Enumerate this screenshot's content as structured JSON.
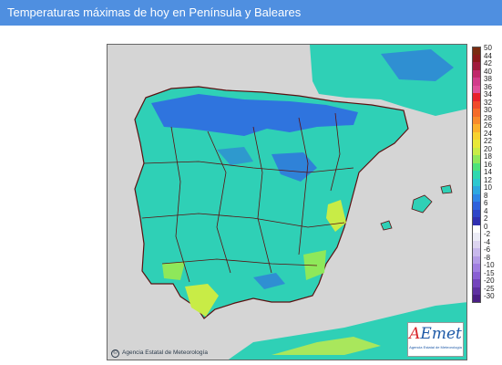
{
  "header": {
    "title": "Temperaturas máximas de hoy en Península y Baleares"
  },
  "map": {
    "copyright": "Agencia Estatal de Meteorología",
    "logo_text": "AEmet",
    "logo_sub": "Agencia Estatal de Meteorología",
    "colors": {
      "sea": "#d5d5d5",
      "land_base": "#2fd0b6",
      "cool": "#2f74de",
      "warm": "#a8e85a",
      "border": "#5a1010"
    }
  },
  "legend": {
    "labels": [
      "50",
      "44",
      "42",
      "40",
      "38",
      "36",
      "34",
      "32",
      "30",
      "28",
      "26",
      "24",
      "22",
      "20",
      "18",
      "16",
      "14",
      "12",
      "10",
      "8",
      "6",
      "4",
      "2",
      "0",
      "-2",
      "-4",
      "-6",
      "-8",
      "-10",
      "-15",
      "-20",
      "-25",
      "-30"
    ],
    "colors": [
      "#7a2b10",
      "#8b1a1a",
      "#a01c3c",
      "#c0286a",
      "#d23c8a",
      "#e0509a",
      "#e8202a",
      "#f04a2a",
      "#f56b28",
      "#f88a2a",
      "#fbb02c",
      "#f7d230",
      "#e8e838",
      "#c8ec46",
      "#8ee85a",
      "#4ee27a",
      "#2fd8b0",
      "#2ec8d0",
      "#2ea8e0",
      "#2e86e6",
      "#2f62dc",
      "#2f46c8",
      "#3030b0",
      "#ffffff",
      "#ececf6",
      "#dcd4f0",
      "#c8b8ec",
      "#b49ce6",
      "#a07ee0",
      "#8a60d4",
      "#7444bc",
      "#5e30a0",
      "#4a1e84"
    ]
  }
}
